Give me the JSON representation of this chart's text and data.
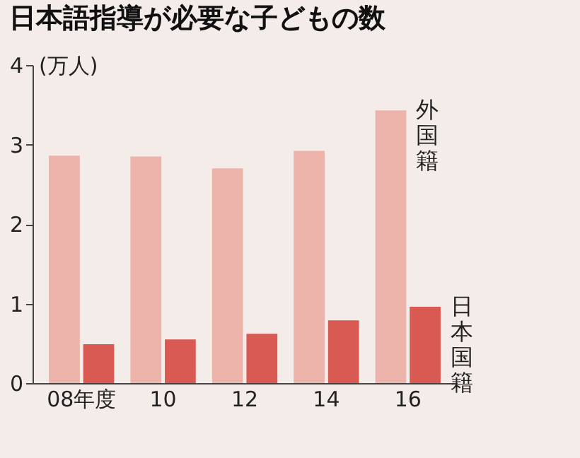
{
  "chart_data": {
    "type": "bar",
    "title": "日本語指導が必要な子どもの数",
    "ylabel": "(万人)",
    "categories": [
      "08年度",
      "10",
      "12",
      "14",
      "16"
    ],
    "series": [
      {
        "name": "外国籍",
        "color": "#ebb3a9",
        "values": [
          2.86,
          2.85,
          2.7,
          2.92,
          3.43
        ]
      },
      {
        "name": "日本国籍",
        "color": "#d95a52",
        "values": [
          0.49,
          0.55,
          0.62,
          0.79,
          0.96
        ]
      }
    ],
    "ylim": [
      0,
      4
    ],
    "yticks": [
      0,
      1,
      2,
      3,
      4
    ],
    "legend": false
  }
}
